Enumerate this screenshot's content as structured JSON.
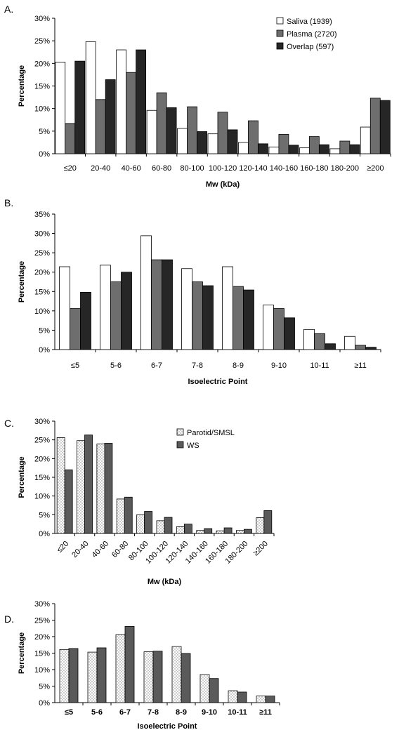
{
  "chart_data": [
    {
      "panel": "A.",
      "type": "bar",
      "xlabel": "Mw (kDa)",
      "ylabel": "Percentage",
      "ylim": [
        0,
        30
      ],
      "yticks": [
        "0%",
        "5%",
        "10%",
        "15%",
        "20%",
        "25%",
        "30%"
      ],
      "categories": [
        "≤20",
        "20-40",
        "40-60",
        "60-80",
        "80-100",
        "100-120",
        "120-140",
        "140-160",
        "160-180",
        "180-200",
        "≥200"
      ],
      "series": [
        {
          "name": "Saliva (1939)",
          "values": [
            20.3,
            24.8,
            23.0,
            9.6,
            5.6,
            4.4,
            2.5,
            1.5,
            1.3,
            1.1,
            5.9
          ]
        },
        {
          "name": "Plasma (2720)",
          "values": [
            6.7,
            12.0,
            18.0,
            13.5,
            10.4,
            9.2,
            7.3,
            4.3,
            3.8,
            2.8,
            12.3
          ]
        },
        {
          "name": "Overlap (597)",
          "values": [
            20.5,
            16.4,
            23.0,
            10.2,
            4.9,
            5.3,
            2.2,
            1.9,
            2.0,
            2.0,
            11.8
          ]
        }
      ],
      "legend_position": "top-right",
      "colors": [
        "#ffffff",
        "#6e6e6e",
        "#262626"
      ]
    },
    {
      "panel": "B.",
      "type": "bar",
      "xlabel": "Isoelectric Point",
      "ylabel": "Percentage",
      "ylim": [
        0,
        35
      ],
      "yticks": [
        "0%",
        "5%",
        "10%",
        "15%",
        "20%",
        "25%",
        "30%",
        "35%"
      ],
      "categories": [
        "≤5",
        "5-6",
        "6-7",
        "7-8",
        "8-9",
        "9-10",
        "10-11",
        "≥11"
      ],
      "series": [
        {
          "values": [
            21.4,
            21.8,
            29.4,
            20.9,
            21.4,
            11.5,
            5.2,
            3.4
          ]
        },
        {
          "values": [
            10.6,
            17.5,
            23.2,
            17.5,
            16.3,
            10.6,
            4.1,
            1.1
          ]
        },
        {
          "values": [
            14.8,
            20.0,
            23.2,
            16.5,
            15.4,
            8.2,
            1.5,
            0.6
          ]
        }
      ],
      "colors": [
        "#ffffff",
        "#6e6e6e",
        "#262626"
      ]
    },
    {
      "panel": "C.",
      "type": "bar",
      "xlabel": "Mw (kDa)",
      "ylabel": "Percentage",
      "ylim": [
        0,
        30
      ],
      "yticks": [
        "0%",
        "5%",
        "10%",
        "15%",
        "20%",
        "25%",
        "30%"
      ],
      "categories": [
        "≤20",
        "20-40",
        "40-60",
        "60-80",
        "80-100",
        "100-120",
        "120-140",
        "140-160",
        "160-180",
        "180-200",
        "≥200"
      ],
      "series": [
        {
          "name": "Parotid/SMSL",
          "values": [
            25.6,
            24.8,
            23.9,
            9.2,
            5.0,
            3.4,
            1.8,
            0.8,
            0.7,
            0.8,
            4.2
          ]
        },
        {
          "name": "WS",
          "values": [
            17.0,
            26.3,
            24.1,
            9.7,
            5.9,
            4.3,
            2.5,
            1.3,
            1.5,
            1.1,
            6.1
          ]
        }
      ],
      "legend_position": "top-right",
      "colors": [
        "dots",
        "#5a5a5a"
      ]
    },
    {
      "panel": "D.",
      "type": "bar",
      "xlabel": "Isoelectric Point",
      "ylabel": "Percentage",
      "ylim": [
        0,
        30
      ],
      "yticks": [
        "0%",
        "5%",
        "10%",
        "15%",
        "20%",
        "25%",
        "30%"
      ],
      "categories": [
        "≤5",
        "5-6",
        "6-7",
        "7-8",
        "8-9",
        "9-10",
        "10-11",
        "≥11"
      ],
      "series": [
        {
          "values": [
            16.1,
            15.3,
            20.6,
            15.4,
            17.0,
            8.5,
            3.6,
            2.0
          ]
        },
        {
          "values": [
            16.4,
            16.6,
            23.1,
            15.6,
            14.9,
            7.3,
            3.2,
            2.0
          ]
        }
      ],
      "colors": [
        "dots",
        "#5a5a5a"
      ]
    }
  ]
}
